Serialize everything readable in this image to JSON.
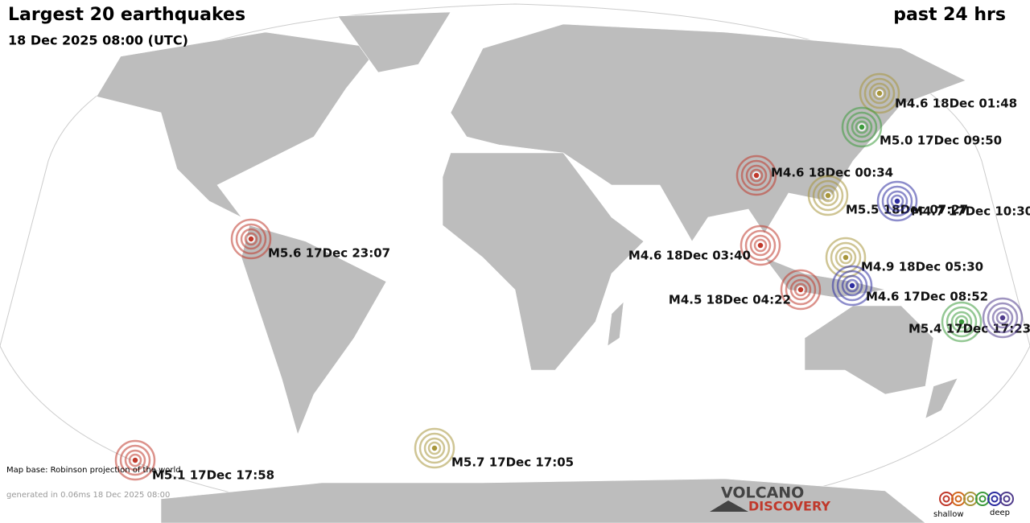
{
  "header": {
    "title": "Largest 20 earthquakes",
    "period": "past 24 hrs",
    "date": "18 Dec 2025 08:00 (UTC)"
  },
  "quakes": [
    {
      "label": "M4.6 18Dec 01:48",
      "color": "#a8963c"
    },
    {
      "label": "M5.0 17Dec 09:50",
      "color": "#3c9a3c"
    },
    {
      "label": "M4.6 18Dec 00:34",
      "color": "#c0392b"
    },
    {
      "label": "M5.5 18Dec 07:27",
      "color": "#a8963c"
    },
    {
      "label": "M4.7 17Dec 10:30",
      "color": "#2d2da0"
    },
    {
      "label": "M5.6 17Dec 23:07",
      "color": "#c0392b"
    },
    {
      "label": "M4.6 18Dec 03:40",
      "color": "#c0392b"
    },
    {
      "label": "M4.9 18Dec 05:30",
      "color": "#a8963c"
    },
    {
      "label": "M4.6 17Dec 08:52",
      "color": "#2d2da0"
    },
    {
      "label": "M4.5 18Dec 04:22",
      "color": "#c0392b"
    },
    {
      "label": "M5.4 17Dec 17:23",
      "color": "#3c9a3c"
    },
    {
      "label": null,
      "color": "#503c8c"
    },
    {
      "label": "M5.1 17Dec 17:58",
      "color": "#c0392b"
    },
    {
      "label": "M5.7 17Dec 17:05",
      "color": "#a8963c"
    }
  ],
  "footer": {
    "map_base": "Map base: Robinson projection of the world",
    "generated": "generated in 0.06ms 18 Dec 2025 08:00"
  },
  "logo": {
    "line1": "VOLCANO",
    "line2": "DISCOVERY"
  },
  "legend": {
    "shallow": "shallow",
    "deep": "deep",
    "colors": [
      "#c0392b",
      "#d2691e",
      "#a8963c",
      "#3c9a3c",
      "#2d2da0",
      "#503c8c"
    ]
  }
}
